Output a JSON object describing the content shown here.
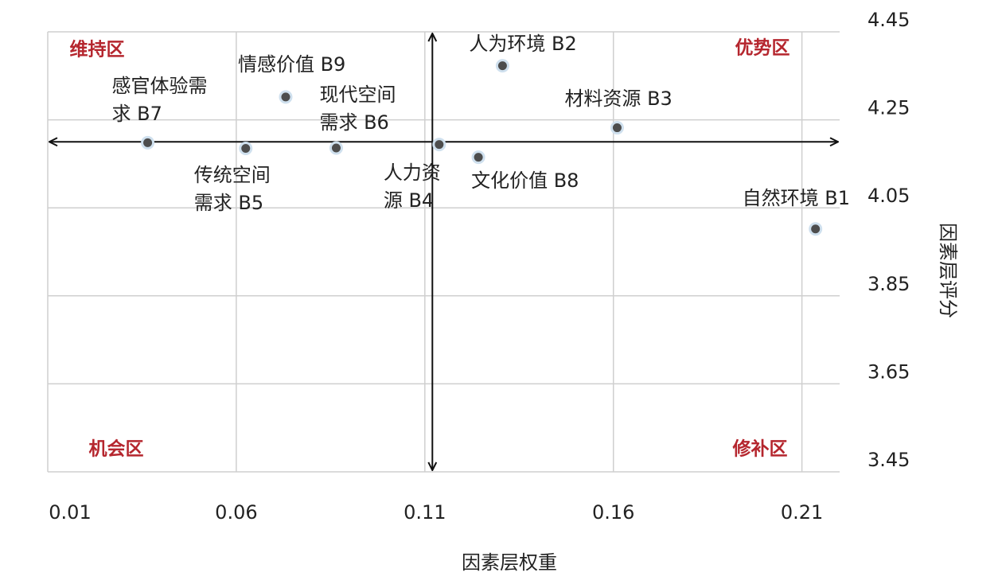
{
  "chart_data": {
    "type": "scatter",
    "x_label": "因素层权重",
    "y_label": "因素层评分",
    "xlim": [
      0.01,
      0.22
    ],
    "xticks": [
      0.01,
      0.06,
      0.11,
      0.16,
      0.21
    ],
    "ylim": [
      3.45,
      4.45
    ],
    "yticks": [
      3.45,
      3.65,
      3.85,
      4.05,
      4.25,
      4.45
    ],
    "grid": true,
    "color": "#4d4d4d",
    "reference_lines": {
      "x": 0.112,
      "y": 4.2
    },
    "quadrant_labels": {
      "top_left": "维持区",
      "top_right": "优势区",
      "bottom_left": "机会区",
      "bottom_right": "修补区"
    },
    "labels": [
      "感官体验需\n求 B7",
      "传统空间\n需求 B5",
      "情感价值 B9",
      "现代空间\n需求 B6",
      "人力资\n源 B4",
      "文化价值 B8",
      "人为环境 B2",
      "材料资源 B3",
      "自然环境 B1"
    ],
    "x": [
      0.0365,
      0.0625,
      0.0731,
      0.0865,
      0.1138,
      0.1242,
      0.1306,
      0.161,
      0.2136
    ],
    "y": [
      4.198,
      4.185,
      4.302,
      4.186,
      4.194,
      4.165,
      4.373,
      4.232,
      4.002
    ]
  }
}
